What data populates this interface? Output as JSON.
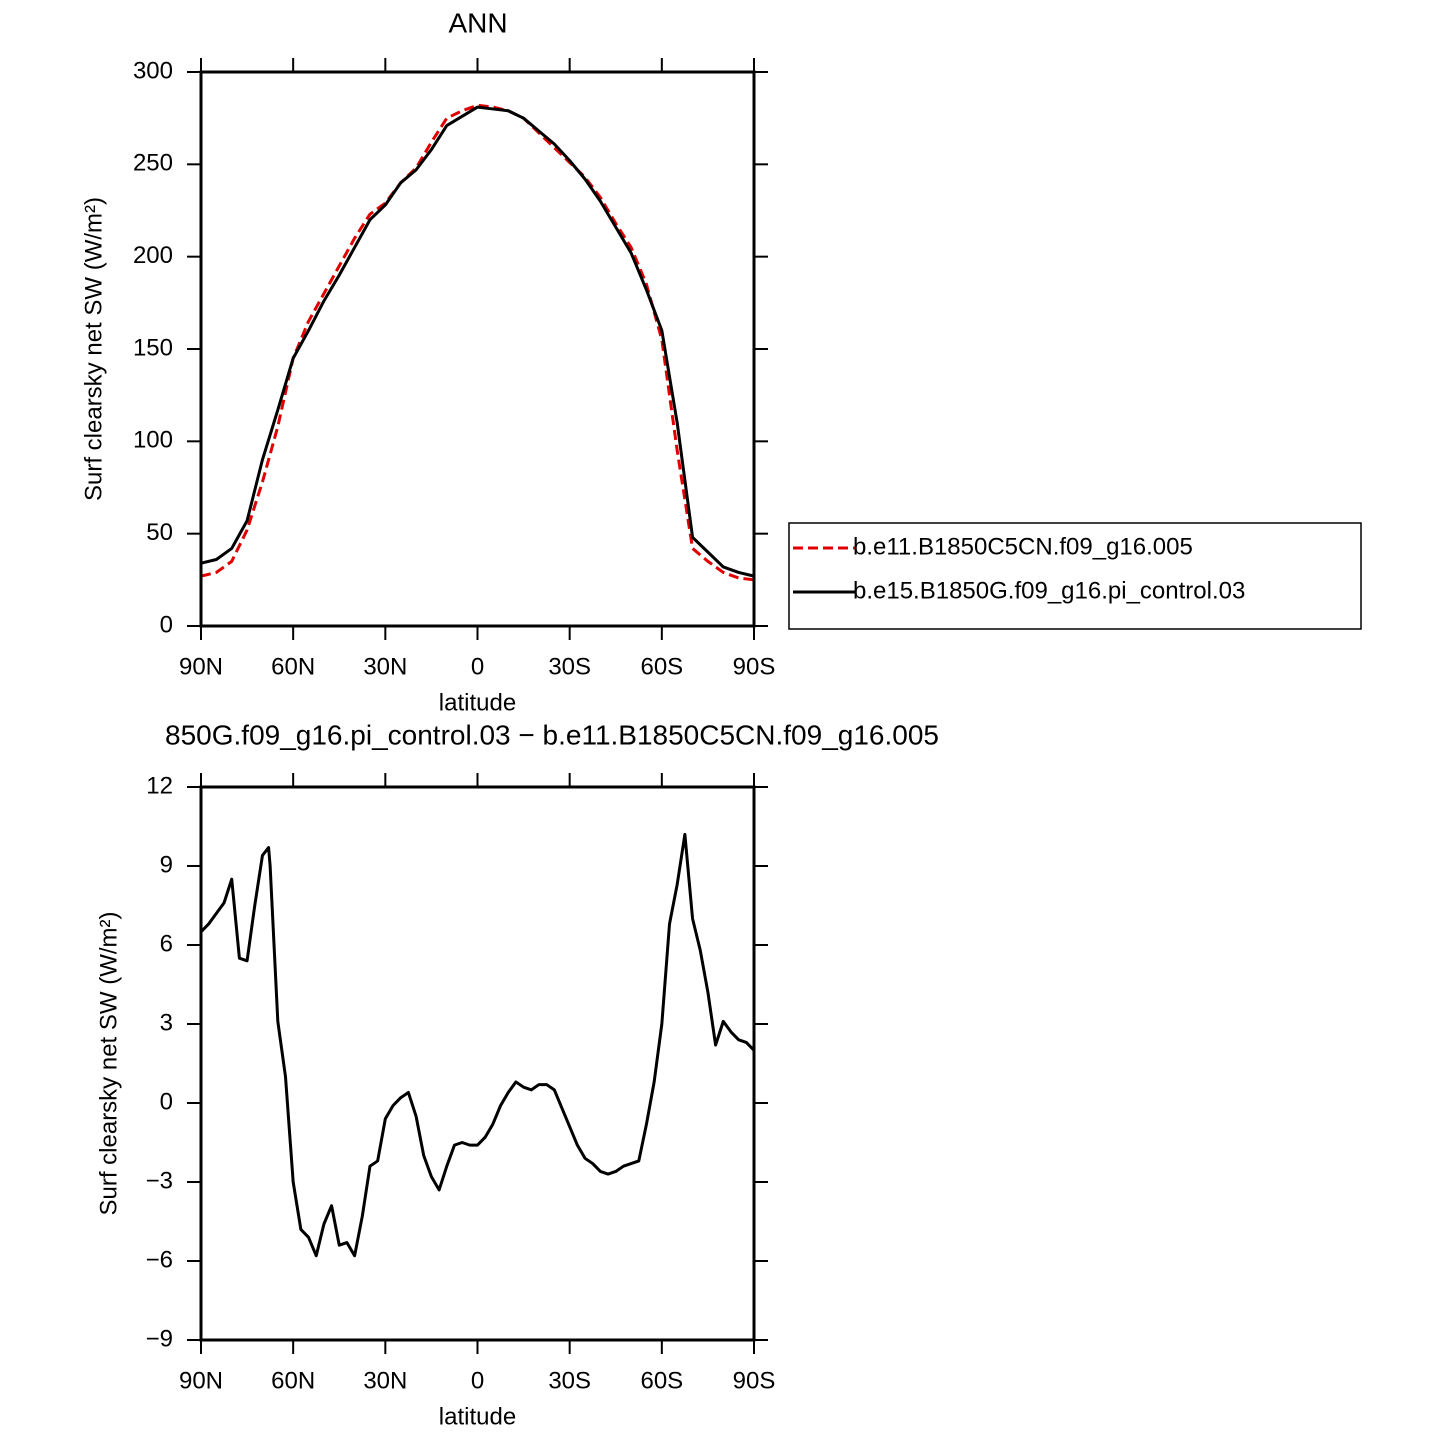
{
  "chart_data": [
    {
      "type": "line",
      "title": "ANN",
      "y_label": "Surf clearsky net SW (W/m²)",
      "x_label": "latitude",
      "xlim": [
        90,
        -90
      ],
      "xticks": [
        {
          "value": 90,
          "label": "90N"
        },
        {
          "value": 60,
          "label": "60N"
        },
        {
          "value": 30,
          "label": "30N"
        },
        0,
        {
          "value": -30,
          "label": "30S"
        },
        {
          "value": -60,
          "label": "60S"
        },
        {
          "value": -90,
          "label": "90S"
        }
      ],
      "ylim": [
        0,
        300
      ],
      "yticks": [
        0,
        50,
        100,
        150,
        200,
        250,
        300
      ],
      "legend_location": "right",
      "x": [
        90,
        85,
        80,
        75,
        70,
        65,
        60,
        55,
        50,
        45,
        40,
        35,
        30,
        25,
        20,
        15,
        10,
        5,
        0,
        -5,
        -10,
        -15,
        -20,
        -25,
        -30,
        -35,
        -40,
        -45,
        -50,
        -55,
        -60,
        -65,
        -70,
        -75,
        -80,
        -85,
        -90
      ],
      "series": [
        {
          "name": "b.e11.B1850C5CN.f09_g16.005",
          "color": "#e00000",
          "linestyle": "dashed",
          "values": [
            27,
            29,
            35,
            52,
            78,
            108,
            145,
            165,
            180,
            195,
            210,
            223,
            229,
            240,
            248,
            262,
            275,
            279,
            282,
            281,
            279,
            275,
            267,
            259,
            251,
            243,
            232,
            218,
            205,
            185,
            155,
            95,
            42,
            35,
            29,
            26,
            25
          ]
        },
        {
          "name": "b.e15.B1850G.f09_g16.pi_control.03",
          "color": "#000000",
          "linestyle": "solid",
          "values": [
            34,
            36,
            42,
            57,
            90,
            117,
            145,
            160,
            176,
            190,
            205,
            220,
            228,
            240,
            247,
            258,
            271,
            276,
            281,
            280,
            279,
            275,
            268,
            261,
            252,
            242,
            230,
            216,
            202,
            182,
            160,
            110,
            48,
            40,
            32,
            29,
            27
          ]
        }
      ]
    },
    {
      "type": "line",
      "title": "850G.f09_g16.pi_control.03 − b.e11.B1850C5CN.f09_g16.005",
      "y_label": "Surf clearsky net SW (W/m²)",
      "x_label": "latitude",
      "xlim": [
        90,
        -90
      ],
      "xticks": [
        {
          "value": 90,
          "label": "90N"
        },
        {
          "value": 60,
          "label": "60N"
        },
        {
          "value": 30,
          "label": "30N"
        },
        0,
        {
          "value": -30,
          "label": "30S"
        },
        {
          "value": -60,
          "label": "60S"
        },
        {
          "value": -90,
          "label": "90S"
        }
      ],
      "ylim": [
        -9,
        12
      ],
      "yticks": [
        {
          "value": -9,
          "label": "−9"
        },
        {
          "value": -6,
          "label": "−6"
        },
        {
          "value": -3,
          "label": "−3"
        },
        0,
        3,
        6,
        9,
        12
      ],
      "x": [
        90,
        87.5,
        85,
        82.5,
        80,
        77.5,
        75,
        72.5,
        70,
        68,
        67.5,
        65,
        62.5,
        60,
        57.5,
        55,
        52.5,
        50,
        47.5,
        45,
        42.5,
        40,
        37.5,
        35,
        32.5,
        30,
        27.5,
        25,
        22.5,
        20,
        17.5,
        15,
        12.5,
        10,
        7.5,
        5,
        2.5,
        0,
        -2.5,
        -5,
        -7.5,
        -10,
        -12.5,
        -15,
        -17.5,
        -20,
        -22.5,
        -25,
        -27.5,
        -30,
        -32.5,
        -35,
        -37.5,
        -40,
        -42.5,
        -45,
        -47.5,
        -50,
        -52.5,
        -55,
        -57.5,
        -60,
        -62.5,
        -65,
        -67.5,
        -70,
        -72.5,
        -75,
        -77.5,
        -80,
        -82.5,
        -85,
        -87.5,
        -90
      ],
      "series": [
        {
          "color": "#000000",
          "linestyle": "solid",
          "values": [
            6.5,
            6.8,
            7.2,
            7.6,
            8.5,
            5.5,
            5.4,
            7.5,
            9.4,
            9.7,
            9.0,
            3.1,
            1.0,
            -3.0,
            -4.8,
            -5.1,
            -5.8,
            -4.6,
            -3.9,
            -5.4,
            -5.3,
            -5.8,
            -4.3,
            -2.4,
            -2.2,
            -0.6,
            -0.1,
            0.2,
            0.4,
            -0.5,
            -2.0,
            -2.8,
            -3.3,
            -2.4,
            -1.6,
            -1.5,
            -1.6,
            -1.6,
            -1.3,
            -0.8,
            -0.1,
            0.4,
            0.8,
            0.6,
            0.5,
            0.7,
            0.7,
            0.5,
            -0.2,
            -0.9,
            -1.6,
            -2.1,
            -2.3,
            -2.6,
            -2.7,
            -2.6,
            -2.4,
            -2.3,
            -2.2,
            -0.8,
            0.8,
            3.0,
            6.8,
            8.3,
            10.2,
            7.0,
            5.8,
            4.2,
            2.2,
            3.1,
            2.7,
            2.4,
            2.3,
            2.0
          ]
        }
      ]
    }
  ]
}
